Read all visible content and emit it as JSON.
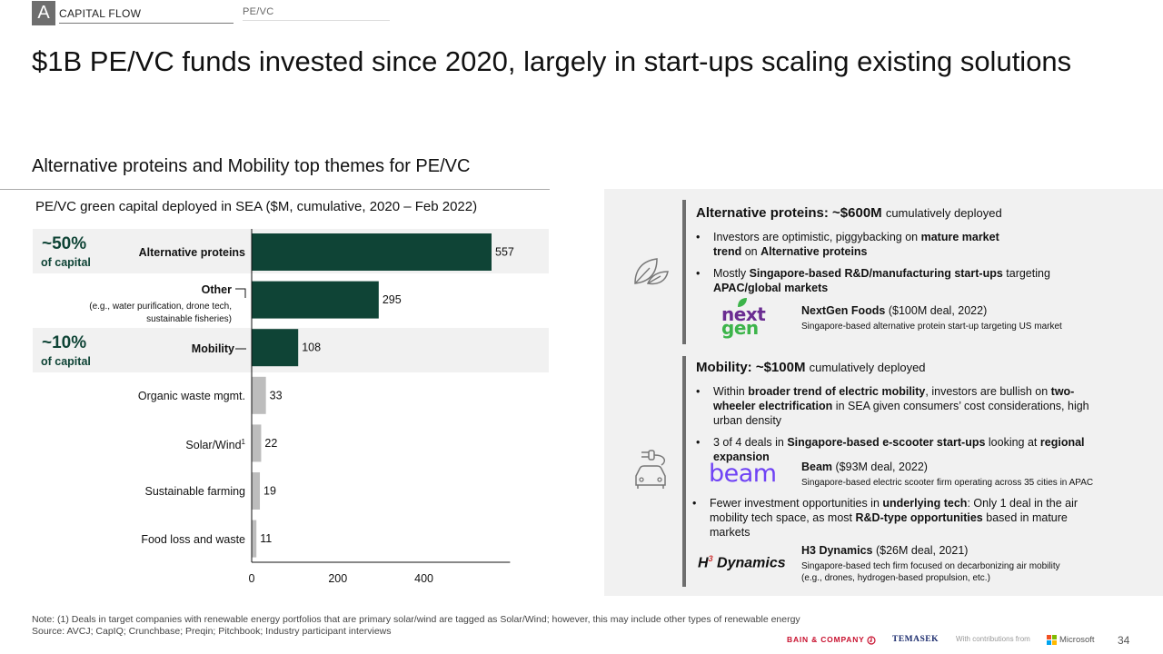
{
  "header": {
    "section_letter": "A",
    "section_name": "CAPITAL FLOW",
    "section_sub": "PE/VC",
    "title": "$1B PE/VC funds invested since 2020, largely in start-ups scaling existing solutions",
    "subtitle": "Alternative proteins and Mobility top themes for PE/VC"
  },
  "bands": [
    {
      "pct": "~50%",
      "cap": "of capital"
    },
    {
      "pct": "~10%",
      "cap": "of capital"
    }
  ],
  "category_notes": {
    "other": "(e.g., water purification, drone tech, sustainable fisheries)",
    "solar_sup": "1"
  },
  "chart_data": {
    "type": "bar",
    "orientation": "horizontal",
    "title": "PE/VC green capital deployed in SEA ($M, cumulative, 2020 – Feb 2022)",
    "categories": [
      "Alternative proteins",
      "Other",
      "Mobility",
      "Organic waste mgmt.",
      "Solar/Wind",
      "Sustainable farming",
      "Food loss and waste"
    ],
    "values": [
      557,
      295,
      108,
      33,
      22,
      19,
      11
    ],
    "bar_colors": [
      "#0f4436",
      "#0f4436",
      "#0f4436",
      "#bdbdbd",
      "#bdbdbd",
      "#bdbdbd",
      "#bdbdbd"
    ],
    "x_ticks": [
      "0",
      "200",
      "400"
    ],
    "xlim": [
      0,
      600
    ],
    "grid": false
  },
  "panel": {
    "proteins": {
      "head_bold": "Alternative proteins: ~$600M",
      "head_rest": "cumulatively deployed",
      "b1_a": "Investors are optimistic, piggybacking on ",
      "b1_b": "mature market",
      "b1_c": "trend",
      "b1_d": " on ",
      "b1_e": "Alternative proteins",
      "b2_a": "Mostly ",
      "b2_b": "Singapore-based R&D/manufacturing start-ups",
      "b2_c": " targeting",
      "b2_d": "APAC/global markets",
      "deal_name": "NextGen Foods",
      "deal_info": " ($100M deal, 2022)",
      "deal_desc": "Singapore-based alternative protein start-up targeting US market",
      "logo_line1": "next",
      "logo_line2": "gen"
    },
    "mobility": {
      "head_bold": "Mobility: ~$100M",
      "head_rest": "cumulatively deployed",
      "b1_a": "Within ",
      "b1_b": "broader trend of electric mobility",
      "b1_c": ", investors are bullish on ",
      "b1_d": "two-",
      "b1_e": "wheeler electrification",
      "b1_f": " in SEA given consumers’ cost considerations, high",
      "b1_g": "urban density",
      "b2_a": "3 of 4 deals in ",
      "b2_b": "Singapore-based e-scooter start-ups",
      "b2_c": " looking at ",
      "b2_d": "regional",
      "b2_e": "expansion",
      "deal1_name": "Beam",
      "deal1_info": " ($93M deal, 2022)",
      "deal1_desc": "Singapore-based electric scooter firm operating across 35 cities in APAC",
      "b3_a": "Fewer investment opportunities in ",
      "b3_b": "underlying tech",
      "b3_c": ": Only 1 deal in the air",
      "b3_d": "mobility tech space, as most ",
      "b3_e": "R&D-type opportunities",
      "b3_f": " based in mature",
      "b3_g": "markets",
      "deal2_name": "H3 Dynamics",
      "deal2_info": " ($26M deal, 2021)",
      "deal2_desc1": "Singapore-based tech firm focused on decarbonizing air mobility",
      "deal2_desc2": "(e.g., drones, hydrogen-based propulsion, etc.)",
      "logo_beam": "beam",
      "logo_h3_a": "H",
      "logo_h3_sup": "3",
      "logo_h3_b": " Dynamics"
    }
  },
  "footer": {
    "note": "Note: (1) Deals in target companies with renewable energy portfolios that are primary solar/wind are tagged as Solar/Wind; however, this may include other types of renewable energy",
    "source": "Source: AVCJ; CapIQ; Crunchbase; Preqin; Pitchbook; Industry participant interviews",
    "bain": "BAIN & COMPANY",
    "temasek": "TEMASEK",
    "contrib": "With contributions from",
    "microsoft": "Microsoft",
    "page": "34"
  },
  "icons": {
    "proteins": "leaf-icon",
    "mobility": "electric-car-icon"
  }
}
